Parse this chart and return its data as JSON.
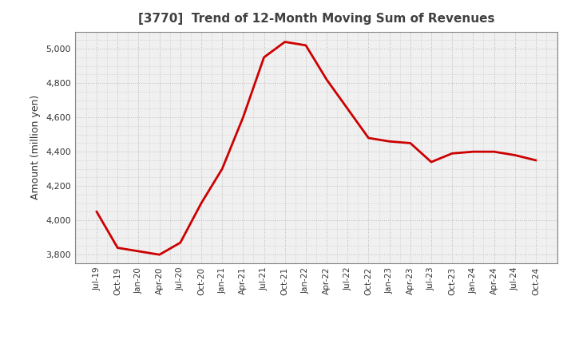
{
  "title": "[3770]  Trend of 12-Month Moving Sum of Revenues",
  "ylabel": "Amount (million yen)",
  "line_color": "#cc0000",
  "line_width": 2.0,
  "background_color": "#ffffff",
  "plot_bg_color": "#f0f0f0",
  "grid_color": "#bbbbbb",
  "title_color": "#404040",
  "ylim": [
    3750,
    5100
  ],
  "yticks": [
    3800,
    4000,
    4200,
    4400,
    4600,
    4800,
    5000
  ],
  "values": [
    4050,
    3840,
    3820,
    3800,
    3870,
    4100,
    4300,
    4600,
    4950,
    5040,
    5020,
    4820,
    4650,
    4480,
    4460,
    4450,
    4340,
    4390,
    4400,
    4400,
    4380,
    4350
  ],
  "xtick_labels": [
    "Jul-19",
    "Oct-19",
    "Jan-20",
    "Apr-20",
    "Jul-20",
    "Oct-20",
    "Jan-21",
    "Apr-21",
    "Jul-21",
    "Oct-21",
    "Jan-22",
    "Apr-22",
    "Jul-22",
    "Oct-22",
    "Jan-23",
    "Apr-23",
    "Jul-23",
    "Oct-23",
    "Jan-24",
    "Apr-24",
    "Jul-24",
    "Oct-24"
  ]
}
